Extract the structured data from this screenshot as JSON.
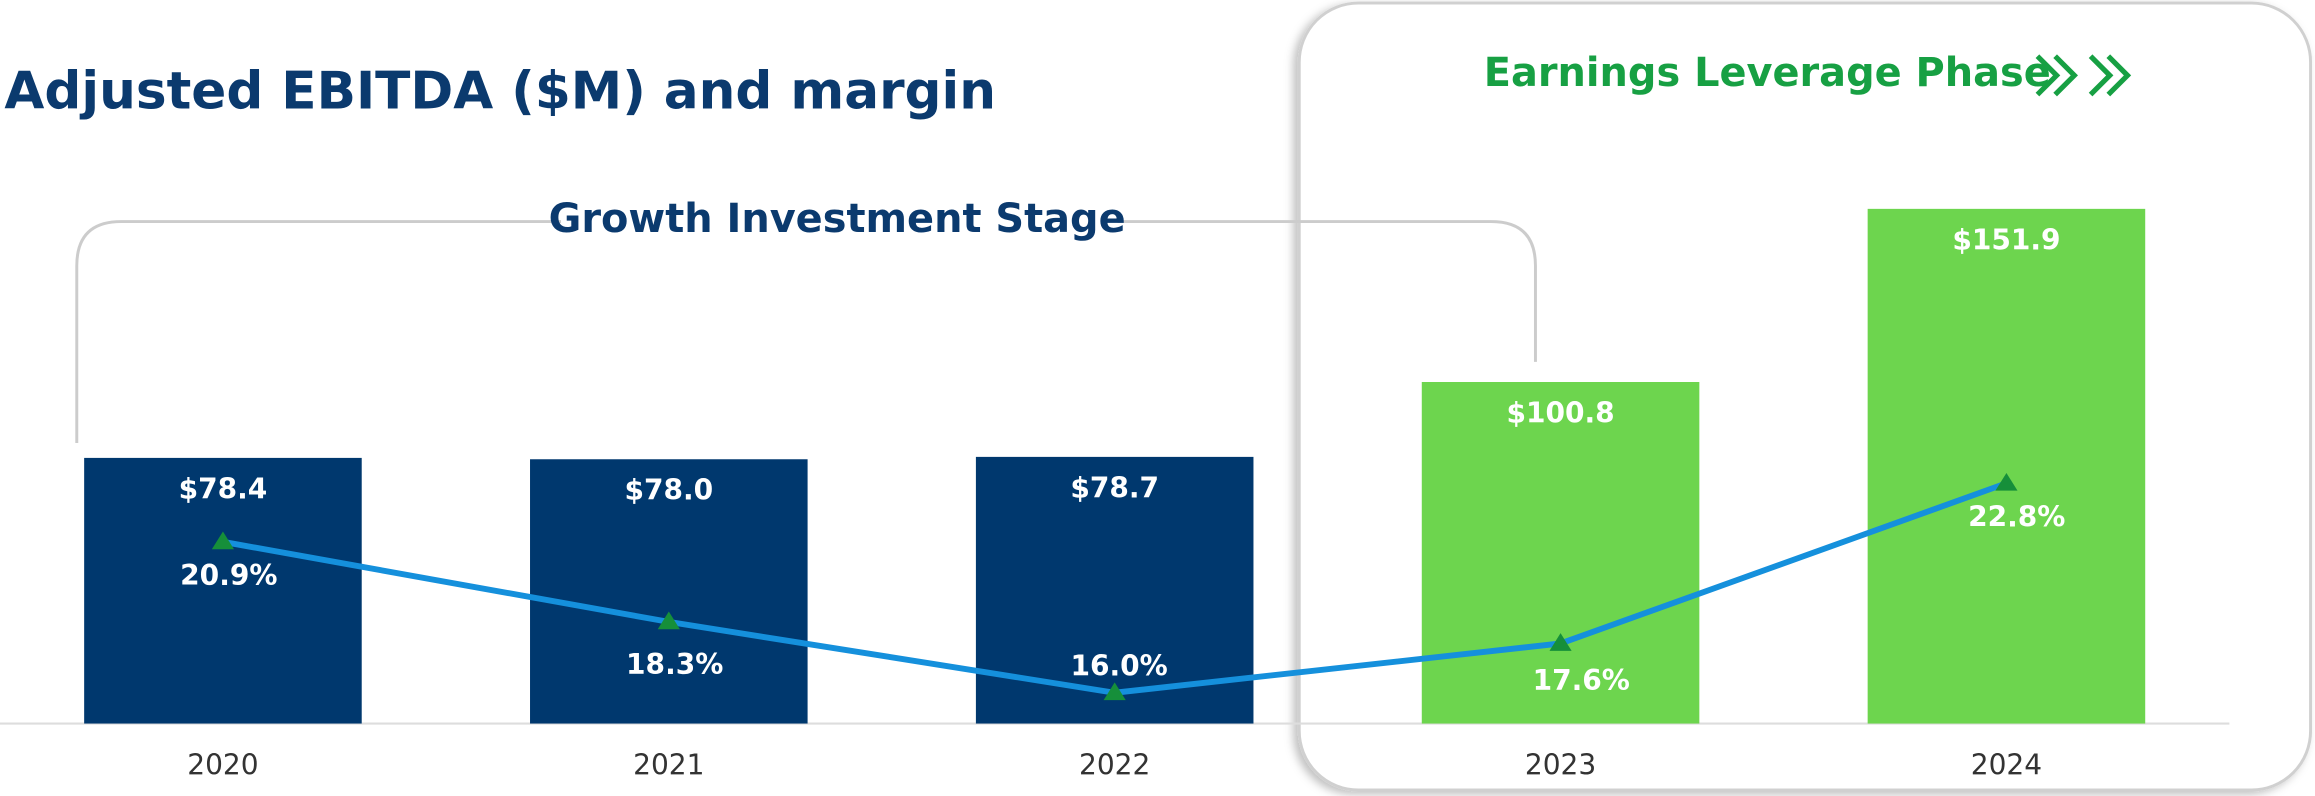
{
  "chart_data": {
    "type": "bar",
    "title": "Adjusted EBITDA ($M) and margin",
    "categories": [
      "2020",
      "2021",
      "2022",
      "2023",
      "2024"
    ],
    "series": [
      {
        "type": "bar",
        "colors": [
          "#00386e",
          "#00386e",
          "#00386e",
          "#6dd54e",
          "#6dd54e"
        ],
        "values": [
          78.4,
          78.0,
          78.7,
          100.8,
          151.9
        ],
        "value_labels": [
          "$78.4",
          "$78.0",
          "$78.7",
          "$100.8",
          "$151.9"
        ]
      },
      {
        "type": "line",
        "axis": "y2",
        "color": "#1590dc",
        "marker_color": "#168f3a",
        "values": [
          20.9,
          18.3,
          16.0,
          17.6,
          22.8
        ],
        "value_labels": [
          "20.9%",
          "18.3%",
          "16.0%",
          "17.6%",
          "22.8%"
        ]
      }
    ],
    "ylim": [
      0,
      200
    ],
    "y2lim": [
      15,
      37
    ],
    "annotations": [
      "Growth Investment Stage",
      "Earnings Leverage Phase"
    ]
  }
}
